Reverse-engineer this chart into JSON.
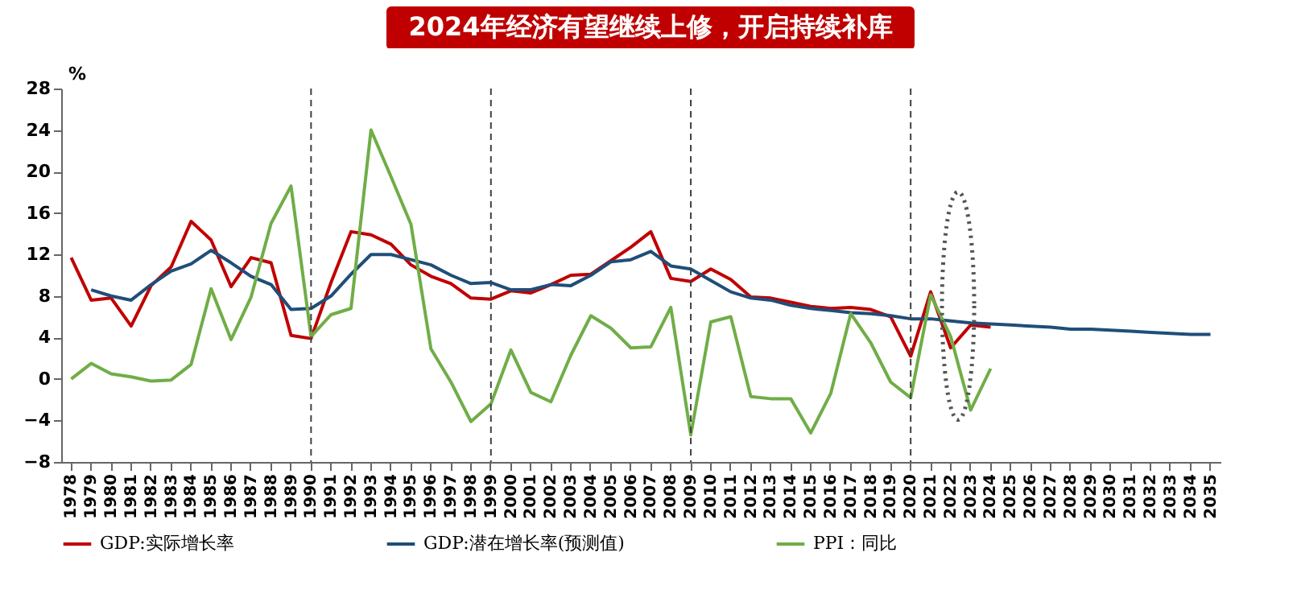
{
  "chart_data": {
    "type": "line",
    "title": "2024年经济有望继续上修，开启持续补库",
    "ylabel": "%",
    "categories": [
      "1978",
      "1979",
      "1980",
      "1981",
      "1982",
      "1983",
      "1984",
      "1985",
      "1986",
      "1987",
      "1988",
      "1989",
      "1990",
      "1991",
      "1992",
      "1993",
      "1994",
      "1995",
      "1996",
      "1997",
      "1998",
      "1999",
      "2000",
      "2001",
      "2002",
      "2003",
      "2004",
      "2005",
      "2006",
      "2007",
      "2008",
      "2009",
      "2010",
      "2011",
      "2012",
      "2013",
      "2014",
      "2015",
      "2016",
      "2017",
      "2018",
      "2019",
      "2020",
      "2021",
      "2022",
      "2023",
      "2024",
      "2025",
      "2026",
      "2027",
      "2028",
      "2029",
      "2030",
      "2031",
      "2032",
      "2033",
      "2034",
      "2035"
    ],
    "series": [
      {
        "name": "GDP:实际增长率",
        "color": "#c00000",
        "values": [
          11.7,
          7.6,
          7.8,
          5.1,
          9.0,
          10.8,
          15.2,
          13.4,
          8.9,
          11.7,
          11.2,
          4.2,
          3.9,
          9.3,
          14.2,
          13.9,
          13.0,
          11.0,
          9.9,
          9.2,
          7.8,
          7.7,
          8.5,
          8.3,
          9.1,
          10.0,
          10.1,
          11.4,
          12.7,
          14.2,
          9.7,
          9.4,
          10.6,
          9.6,
          7.9,
          7.8,
          7.4,
          7.0,
          6.8,
          6.9,
          6.7,
          6.0,
          2.2,
          8.4,
          3.0,
          5.2,
          5.0,
          null,
          null,
          null,
          null,
          null,
          null,
          null,
          null,
          null,
          null,
          null
        ]
      },
      {
        "name": "GDP:潜在增长率(预测值)",
        "color": "#1f4e79",
        "values": [
          null,
          8.6,
          8.0,
          7.6,
          9.1,
          10.4,
          11.1,
          12.4,
          11.2,
          9.9,
          9.1,
          6.7,
          6.8,
          8.0,
          10.1,
          12.0,
          12.0,
          11.5,
          11.0,
          10.0,
          9.2,
          9.3,
          8.6,
          8.6,
          9.1,
          9.0,
          10.0,
          11.3,
          11.5,
          12.3,
          10.9,
          10.6,
          9.5,
          8.4,
          7.8,
          7.6,
          7.1,
          6.8,
          6.6,
          6.4,
          6.3,
          6.1,
          5.8,
          5.8,
          5.6,
          5.4,
          5.3,
          5.2,
          5.1,
          5.0,
          4.8,
          4.8,
          4.7,
          4.6,
          4.5,
          4.4,
          4.3,
          4.3
        ]
      },
      {
        "name": "PPI：同比",
        "color": "#70ad47",
        "values": [
          0,
          1.5,
          0.5,
          0.2,
          -0.2,
          -0.1,
          1.4,
          8.7,
          3.8,
          7.9,
          15.0,
          18.6,
          4.1,
          6.2,
          6.8,
          24.0,
          19.5,
          14.9,
          2.9,
          -0.3,
          -4.1,
          -2.4,
          2.8,
          -1.3,
          -2.2,
          2.3,
          6.1,
          4.9,
          3.0,
          3.1,
          6.9,
          -5.4,
          5.5,
          6.0,
          -1.7,
          -1.9,
          -1.9,
          -5.2,
          -1.4,
          6.3,
          3.5,
          -0.3,
          -1.8,
          8.1,
          4.1,
          -3.0,
          1.0,
          null,
          null,
          null,
          null,
          null,
          null,
          null,
          null,
          null,
          null,
          null
        ]
      }
    ],
    "ylim": [
      -8,
      28
    ],
    "yticks": [
      -8,
      -4,
      0,
      4,
      8,
      12,
      16,
      20,
      24,
      28
    ],
    "grid": false,
    "legend": "bottom",
    "ref_lines": [
      {
        "axis": "x",
        "value": "1990",
        "color": "#404040",
        "line_style": "dashed"
      },
      {
        "axis": "x",
        "value": "1999",
        "color": "#404040",
        "line_style": "dashed"
      },
      {
        "axis": "x",
        "value": "2009",
        "color": "#404040",
        "line_style": "dashed"
      },
      {
        "axis": "x",
        "value": "2020",
        "color": "#404040",
        "line_style": "dashed"
      }
    ]
  }
}
